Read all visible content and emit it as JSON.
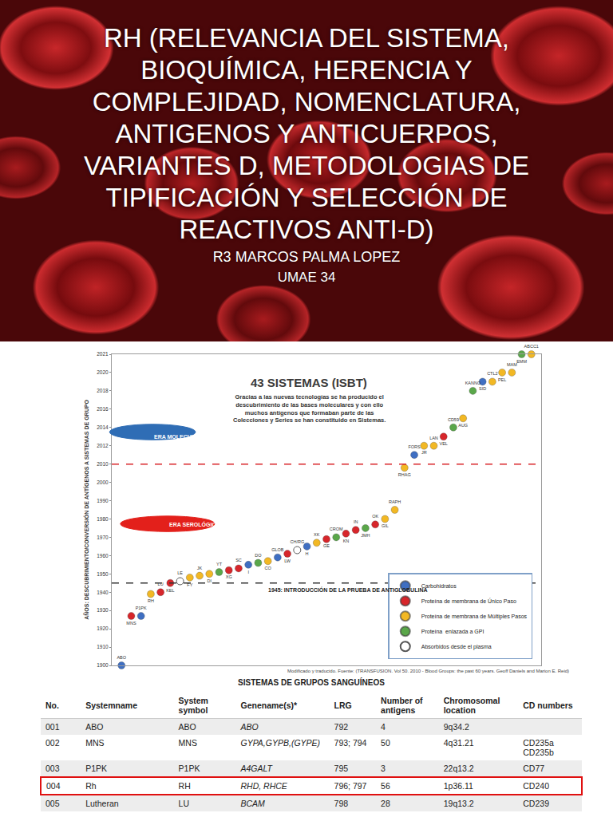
{
  "slide": {
    "title_lines": [
      "RH (RELEVANCIA DEL SISTEMA,",
      "BIOQUÍMICA,  HERENCIA Y",
      "COMPLEJIDAD, NOMENCLATURA,",
      "ANTIGENOS Y ANTICUERPOS,",
      "VARIANTES D,  METODOLOGIAS DE",
      "TIPIFICACIÓN  Y SELECCIÓN DE",
      "REACTIVOS ANTI-D)"
    ],
    "author": "R3 MARCOS PALMA LOPEZ",
    "institution": "UMAE 34"
  },
  "chart_data": {
    "type": "scatter",
    "title": "43 SISTEMAS (ISBT)",
    "text_box": "Gracias a las nuevas tecnologías se ha producido el descubrimiento de las bases moleculares y con ello muchos antígenos que formaban parte de las Colecciones y Series se han constituido en Sistemas.",
    "y_label": "AÑOS: DESCUBRIMIENTO/CONVERSIÓN DE ANTÍGENOS A SISTEMAS DE GRUPO",
    "annotations": [
      {
        "text": "ERA MOLECULAR",
        "color": "#2f6db5"
      },
      {
        "text": "ERA SEROLÓGICA",
        "color": "#e3201b"
      }
    ],
    "reference_lines": [
      {
        "value": 2010,
        "color": "#d9262b"
      },
      {
        "value": 1945,
        "color": "#333333",
        "label": "1945: INTRODUCCIÓN DE LA PRUEBA DE ANTIGLOBULINA"
      }
    ],
    "source": "Modificado y traducido. Fuente: (TRANSFUSION. Vol 50. 2010 - Blood Groups: the past 60 years. Geoff Daniels and Marion E. Reid)",
    "xlim": [
      0,
      44
    ],
    "ylim": [
      1900,
      2021
    ],
    "yticks": [
      1900,
      1910,
      1920,
      1930,
      1940,
      1950,
      1960,
      1970,
      1980,
      1990,
      2000,
      2010,
      2012,
      2014,
      2016,
      2018,
      2020,
      2021
    ],
    "tick_labels": "y",
    "grid": false,
    "legend": "lower right",
    "marker": "circle",
    "series": [
      {
        "name": "Carbohidratos",
        "color": "#3f6fc2",
        "x": [
          1,
          3,
          14,
          17,
          20,
          31,
          38
        ],
        "values": [
          1900,
          1927,
          1955,
          1959,
          1965,
          2011,
          2019
        ],
        "labels": [
          "ABO",
          "P1PK",
          "I",
          "GLOB",
          "H",
          "FORS",
          "SID"
        ]
      },
      {
        "name": "Proteína de membrana de Único Paso",
        "color": "#d7262b",
        "x": [
          2,
          5,
          6,
          12,
          13,
          18,
          22,
          24,
          25,
          27,
          34
        ],
        "values": [
          1927,
          1940,
          1945,
          1952,
          1953,
          1961,
          1969,
          1972,
          1974,
          1977,
          2013
        ],
        "labels": [
          "MNS",
          "LU",
          "KEL",
          "XG",
          "SC",
          "LW",
          "GE",
          "KN",
          "IN",
          "OK",
          "VEL"
        ]
      },
      {
        "name": "Proteína de membrana de Múltiples Pasos",
        "color": "#f2b824",
        "x": [
          4,
          8,
          9,
          10,
          16,
          21,
          28,
          29,
          30,
          32,
          33,
          36,
          39,
          40,
          41,
          43
        ],
        "values": [
          1939,
          1948,
          1949,
          1950,
          1957,
          1967,
          1980,
          1985,
          2008,
          2012,
          2012,
          2015,
          2019,
          2020,
          2020,
          2021
        ],
        "labels": [
          "RH",
          "FY",
          "JK",
          "DI",
          "CO",
          "XK",
          "GIL",
          "RAPH",
          "RHAG",
          "JR",
          "LAN",
          "AUG",
          "CTL2",
          "PEL",
          "MAM",
          "ABCC1"
        ]
      },
      {
        "name": "Proteína  enlazada a GPI",
        "color": "#5aa74a",
        "x": [
          11,
          15,
          23,
          26,
          35,
          37,
          42
        ],
        "values": [
          1951,
          1956,
          1970,
          1975,
          2014,
          2018,
          2021
        ],
        "labels": [
          "YT",
          "DO",
          "CROM",
          "JMH",
          "CD59",
          "KANNO",
          "EMM"
        ]
      },
      {
        "name": "Absorbidos desde el plasma",
        "color": "#ffffff",
        "x": [
          7,
          19
        ],
        "values": [
          1946,
          1963
        ],
        "labels": [
          "LE",
          "CH/RG"
        ]
      }
    ]
  },
  "table": {
    "caption": "SISTEMAS  DE GRUPOS SANGUÍNEOS",
    "header": [
      "No.",
      "Systemname",
      "System symbol",
      "Genename(s)*",
      "LRG",
      "Number of antigens",
      "Chromosomal location",
      "CD numbers"
    ],
    "rows": [
      [
        "001",
        "ABO",
        "ABO",
        "ABO",
        792,
        4,
        "9q34.2",
        null
      ],
      [
        "002",
        "MNS",
        "MNS",
        "GYPA,GYPB,(GYPE)",
        "793; 794",
        50,
        "4q31.21",
        "CD235a CD235b"
      ],
      [
        "003",
        "P1PK",
        "P1PK",
        "A4GALT",
        795,
        3,
        "22q13.2",
        "CD77"
      ],
      [
        "004",
        "Rh",
        "RH",
        "RHD, RHCE",
        "796; 797",
        56,
        "1p36.11",
        "CD240"
      ],
      [
        "005",
        "Lutheran",
        "LU",
        "BCAM",
        798,
        28,
        "19q13.2",
        "CD239"
      ]
    ],
    "highlighted_row": "004"
  }
}
